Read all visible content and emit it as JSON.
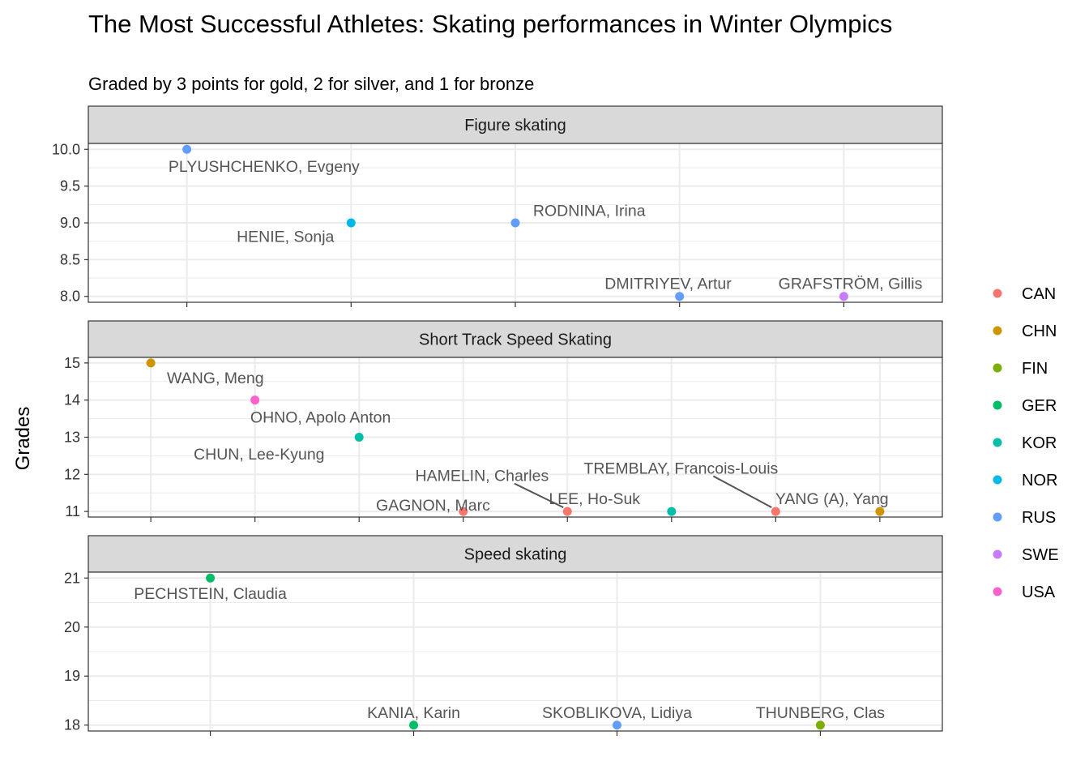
{
  "chart_data": {
    "type": "scatter",
    "title": "The Most Successful Athletes: Skating performances in Winter Olympics",
    "subtitle": "Graded by 3 points for gold, 2 for silver, and 1 for bronze",
    "ylabel": "Grades",
    "legend": {
      "position": "right",
      "entries": [
        {
          "label": "CAN",
          "color": "#F8766D"
        },
        {
          "label": "CHN",
          "color": "#CD9600"
        },
        {
          "label": "FIN",
          "color": "#7CAE00"
        },
        {
          "label": "GER",
          "color": "#00BE67"
        },
        {
          "label": "KOR",
          "color": "#00BFA8"
        },
        {
          "label": "NOR",
          "color": "#00B8E7"
        },
        {
          "label": "RUS",
          "color": "#619CFF"
        },
        {
          "label": "SWE",
          "color": "#C77CFF"
        },
        {
          "label": "USA",
          "color": "#FF61CC"
        }
      ]
    },
    "grid": true,
    "facets": [
      {
        "name": "Figure skating",
        "ylim": [
          7.92,
          10.08
        ],
        "yticks": [
          8.0,
          8.5,
          9.0,
          9.5,
          10.0
        ],
        "ytick_labels": [
          "8.0",
          "8.5",
          "9.0",
          "9.5",
          "10.0"
        ],
        "xlim": [
          0.4,
          5.6
        ],
        "points": [
          {
            "x": 1,
            "y": 10,
            "athlete": "PLYUSHCHENKO, Evgeny",
            "country": "RUS",
            "lx": 1.47,
            "ly": 9.77
          },
          {
            "x": 2,
            "y": 9,
            "athlete": "HENIE, Sonja",
            "country": "NOR",
            "lx": 1.6,
            "ly": 8.82
          },
          {
            "x": 3,
            "y": 9,
            "athlete": "RODNINA, Irina",
            "country": "RUS",
            "lx": 3.45,
            "ly": 9.17
          },
          {
            "x": 4,
            "y": 8,
            "athlete": "DMITRIYEV, Artur",
            "country": "RUS",
            "lx": 3.93,
            "ly": 8.18
          },
          {
            "x": 5,
            "y": 8,
            "athlete": "GRAFSTRÖM, Gillis",
            "country": "SWE",
            "lx": 5.04,
            "ly": 8.18
          }
        ]
      },
      {
        "name": "Short Track Speed Skating",
        "ylim": [
          10.85,
          15.15
        ],
        "yticks": [
          11,
          12,
          13,
          14,
          15
        ],
        "ytick_labels": [
          "11",
          "12",
          "13",
          "14",
          "15"
        ],
        "xlim": [
          0.4,
          8.6
        ],
        "points": [
          {
            "x": 1,
            "y": 15,
            "athlete": "WANG, Meng",
            "country": "CHN",
            "lx": 1.62,
            "ly": 14.6
          },
          {
            "x": 2,
            "y": 14,
            "athlete": "OHNO, Apolo Anton",
            "country": "USA",
            "lx": 2.63,
            "ly": 13.55
          },
          {
            "x": 3,
            "y": 13,
            "athlete": "CHUN, Lee-Kyung",
            "country": "KOR",
            "lx": 2.04,
            "ly": 12.55
          },
          {
            "x": 4,
            "y": 11,
            "athlete": "GAGNON, Marc",
            "country": "CAN",
            "lx": 3.71,
            "ly": 11.18
          },
          {
            "x": 5,
            "y": 11,
            "athlete": "HAMELIN, Charles",
            "country": "CAN",
            "lx": 4.18,
            "ly": 11.97
          },
          {
            "x": 6,
            "y": 11,
            "athlete": "LEE, Ho-Suk",
            "country": "KOR",
            "lx": 5.26,
            "ly": 11.35
          },
          {
            "x": 7,
            "y": 11,
            "athlete": "TREMBLAY, Francois-Louis",
            "country": "CAN",
            "lx": 6.09,
            "ly": 12.17
          },
          {
            "x": 8,
            "y": 11,
            "athlete": "YANG (A), Yang",
            "country": "CHN",
            "lx": 7.54,
            "ly": 11.35
          }
        ]
      },
      {
        "name": "Speed skating",
        "ylim": [
          17.88,
          21.12
        ],
        "yticks": [
          18,
          19,
          20,
          21
        ],
        "ytick_labels": [
          "18",
          "19",
          "20",
          "21"
        ],
        "xlim": [
          0.4,
          4.6
        ],
        "points": [
          {
            "x": 1,
            "y": 21,
            "athlete": "PECHSTEIN, Claudia",
            "country": "GER",
            "lx": 1.0,
            "ly": 20.69
          },
          {
            "x": 2,
            "y": 18,
            "athlete": "KANIA, Karin",
            "country": "GER",
            "lx": 2.0,
            "ly": 18.26
          },
          {
            "x": 3,
            "y": 18,
            "athlete": "SKOBLIKOVA, Lidiya",
            "country": "RUS",
            "lx": 3.0,
            "ly": 18.26
          },
          {
            "x": 4,
            "y": 18,
            "athlete": "THUNBERG, Clas",
            "country": "FIN",
            "lx": 4.0,
            "ly": 18.26
          }
        ]
      }
    ]
  }
}
